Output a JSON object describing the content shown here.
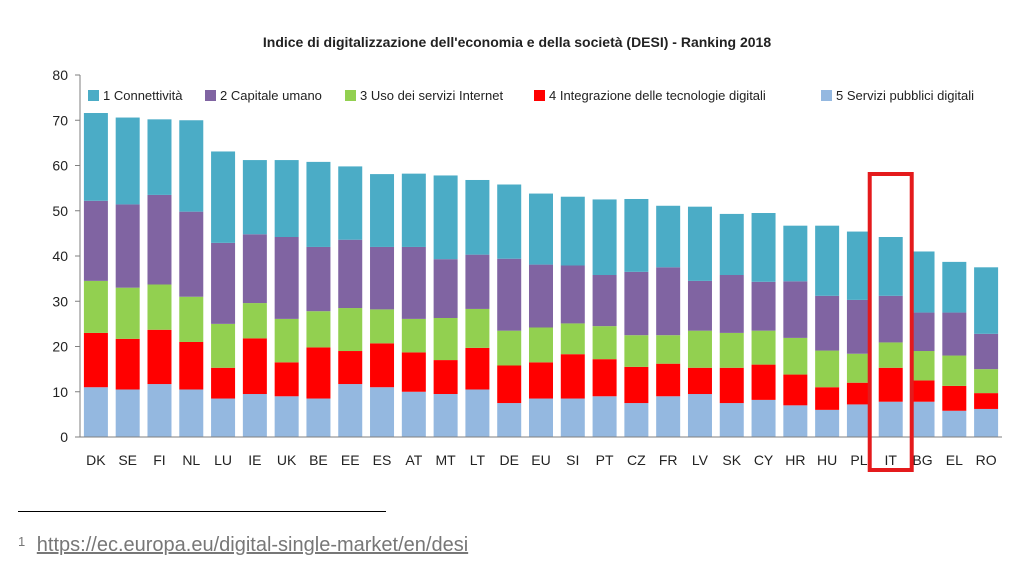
{
  "chart_data": {
    "type": "bar",
    "stacked": true,
    "title": "Indice di digitalizzazione dell'economia e della società (DESI) - Ranking 2018",
    "xlabel": "",
    "ylabel": "",
    "ylim": [
      0,
      80
    ],
    "yticks": [
      0,
      10,
      20,
      30,
      40,
      50,
      60,
      70,
      80
    ],
    "grid": false,
    "legend_position": "top",
    "highlight_category": "IT",
    "highlight_color": "#e41a1c",
    "categories": [
      "DK",
      "SE",
      "FI",
      "NL",
      "LU",
      "IE",
      "UK",
      "BE",
      "EE",
      "ES",
      "AT",
      "MT",
      "LT",
      "DE",
      "EU",
      "SI",
      "PT",
      "CZ",
      "FR",
      "LV",
      "SK",
      "CY",
      "HR",
      "HU",
      "PL",
      "IT",
      "BG",
      "EL",
      "RO"
    ],
    "series": [
      {
        "name": "5 Servizi pubblici digitali",
        "color": "#94b8e0",
        "values": [
          11,
          10.5,
          11.7,
          10.5,
          8.5,
          9.5,
          9,
          8.5,
          11.7,
          11,
          10,
          9.5,
          10.5,
          7.5,
          8.5,
          8.5,
          9,
          7.5,
          9,
          9.5,
          7.5,
          8.2,
          7,
          6,
          7.2,
          7.8,
          7.8,
          5.8,
          6.2
        ]
      },
      {
        "name": "4 Integrazione delle tecnologie digitali",
        "color": "#ff0000",
        "values": [
          12,
          11.2,
          12,
          10.5,
          6.8,
          12.3,
          7.5,
          11.3,
          7.3,
          9.7,
          8.7,
          7.5,
          9.2,
          8.3,
          8,
          9.8,
          8.2,
          8,
          7.2,
          5.8,
          7.8,
          7.8,
          6.8,
          5,
          4.8,
          7.5,
          4.7,
          5.5,
          3.5
        ]
      },
      {
        "name": "3 Uso dei servizi Internet",
        "color": "#92d050",
        "values": [
          11.5,
          11.3,
          10,
          10,
          9.7,
          7.8,
          9.6,
          8,
          9.5,
          7.5,
          7.4,
          9.3,
          8.6,
          7.7,
          7.7,
          6.8,
          7.3,
          7,
          6.3,
          8.2,
          7.7,
          7.5,
          8.1,
          8.1,
          6.4,
          5.6,
          6.5,
          6.7,
          5.3
        ]
      },
      {
        "name": "2 Capitale umano",
        "color": "#8064a2",
        "values": [
          17.7,
          18.4,
          19.8,
          18.8,
          17.9,
          15.2,
          18.1,
          14.2,
          15.1,
          13.8,
          15.9,
          13,
          12,
          15.9,
          13.9,
          12.8,
          11.3,
          14,
          15,
          11,
          12.8,
          10.8,
          12.5,
          12.1,
          11.9,
          10.3,
          8.5,
          9.5,
          7.8
        ]
      },
      {
        "name": "1 Connettività",
        "color": "#4bacc6",
        "values": [
          19.4,
          19.2,
          16.7,
          20.2,
          20.2,
          16.4,
          17,
          18.8,
          16.2,
          16.1,
          16.2,
          18.5,
          16.5,
          16.4,
          15.7,
          15.2,
          16.7,
          16.1,
          13.6,
          16.4,
          13.5,
          15.2,
          12.3,
          15.5,
          15.1,
          13,
          13.5,
          11.2,
          14.7
        ]
      }
    ]
  },
  "footnote": {
    "marker": "1",
    "link_text": "https://ec.europa.eu/digital-single-market/en/desi"
  }
}
